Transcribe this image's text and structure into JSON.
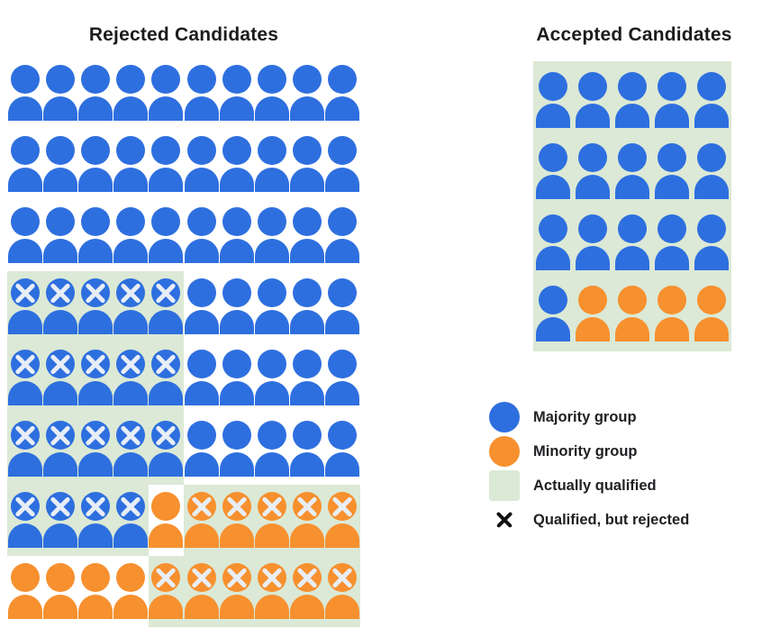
{
  "titles": {
    "rejected": "Rejected Candidates",
    "accepted": "Accepted Candidates"
  },
  "colors": {
    "majority_blue": "#2e6fdf",
    "minority_orange": "#f7902e",
    "qualified_green": "#dbe9d6",
    "icon_x_light": "#e8eef6",
    "legend_x_black": "#111111",
    "text": "#202124"
  },
  "cell_codes": {
    "b": "majority person (blue)",
    "o": "minority person (orange)",
    "q": "actually qualified (green background)",
    "x": "qualified but rejected (x mark on icon)"
  },
  "rejected_grid": {
    "columns": 10,
    "rows": [
      [
        "b",
        "b",
        "b",
        "b",
        "b",
        "b",
        "b",
        "b",
        "b",
        "b"
      ],
      [
        "b",
        "b",
        "b",
        "b",
        "b",
        "b",
        "b",
        "b",
        "b",
        "b"
      ],
      [
        "b",
        "b",
        "b",
        "b",
        "b",
        "b",
        "b",
        "b",
        "b",
        "b"
      ],
      [
        "bxq",
        "bxq",
        "bxq",
        "bxq",
        "bxq",
        "b",
        "b",
        "b",
        "b",
        "b"
      ],
      [
        "bxq",
        "bxq",
        "bxq",
        "bxq",
        "bxq",
        "b",
        "b",
        "b",
        "b",
        "b"
      ],
      [
        "bxq",
        "bxq",
        "bxq",
        "bxq",
        "bxq",
        "b",
        "b",
        "b",
        "b",
        "b"
      ],
      [
        "bxq",
        "bxq",
        "bxq",
        "bxq",
        "o",
        "oxq",
        "oxq",
        "oxq",
        "oxq",
        "oxq"
      ],
      [
        "o",
        "o",
        "o",
        "o",
        "oxq",
        "oxq",
        "oxq",
        "oxq",
        "oxq",
        "oxq"
      ]
    ]
  },
  "accepted_grid": {
    "columns": 5,
    "rows": [
      [
        "bq",
        "bq",
        "bq",
        "bq",
        "bq"
      ],
      [
        "bq",
        "bq",
        "bq",
        "bq",
        "bq"
      ],
      [
        "bq",
        "bq",
        "bq",
        "bq",
        "bq"
      ],
      [
        "bq",
        "oq",
        "oq",
        "oq",
        "oq"
      ]
    ]
  },
  "legend": {
    "items": [
      {
        "label": "Majority group",
        "swatch": "majority-circle",
        "icon_name": "majority-group-icon"
      },
      {
        "label": "Minority group",
        "swatch": "minority-circle",
        "icon_name": "minority-group-icon"
      },
      {
        "label": "Actually qualified",
        "swatch": "qualified-square",
        "icon_name": "actually-qualified-swatch"
      },
      {
        "label": "Qualified, but rejected",
        "swatch": "x-mark",
        "icon_name": "qualified-but-rejected-x-icon"
      }
    ]
  }
}
